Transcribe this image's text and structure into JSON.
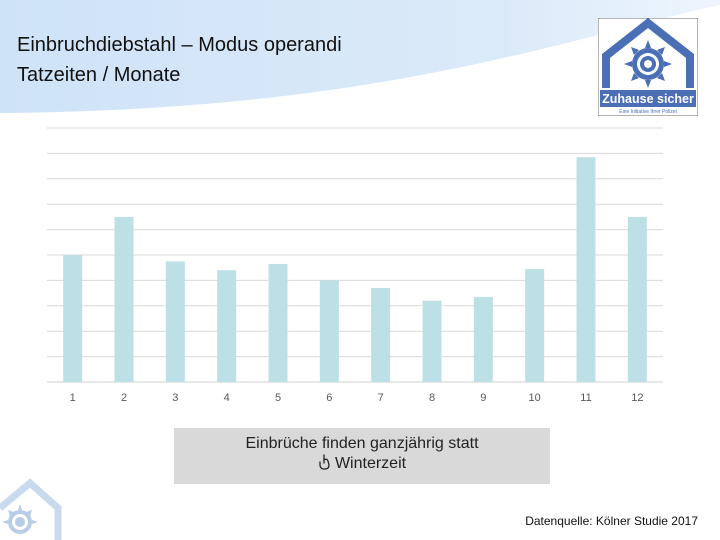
{
  "header": {
    "title_line1": "Einbruchdiebstahl – Modus operandi",
    "title_line2": "Tatzeiten / Monate"
  },
  "logo": {
    "text": "Zuhause sicher",
    "subtitle": "Eine Initiative Ihrer Polizei",
    "color": "#4a6fb5"
  },
  "chart_data": {
    "type": "bar",
    "title": "",
    "xlabel": "",
    "ylabel": "",
    "categories": [
      "1",
      "2",
      "3",
      "4",
      "5",
      "6",
      "7",
      "8",
      "9",
      "10",
      "11",
      "12"
    ],
    "values": [
      50,
      65,
      47.5,
      44,
      46.5,
      40,
      37,
      32,
      33.5,
      44.5,
      88.5,
      65
    ],
    "ylim": [
      0,
      100
    ],
    "grid": true,
    "y_tick_labels_shown": false,
    "bar_color": "#bde0e6",
    "grid_color": "#d9d9d9"
  },
  "callout": {
    "line1": "Einbrüche finden ganzjährig statt",
    "line2": "Winterzeit",
    "icon": "hand-pointing-icon"
  },
  "footer": {
    "source": "Datenquelle: Kölner Studie 2017"
  }
}
